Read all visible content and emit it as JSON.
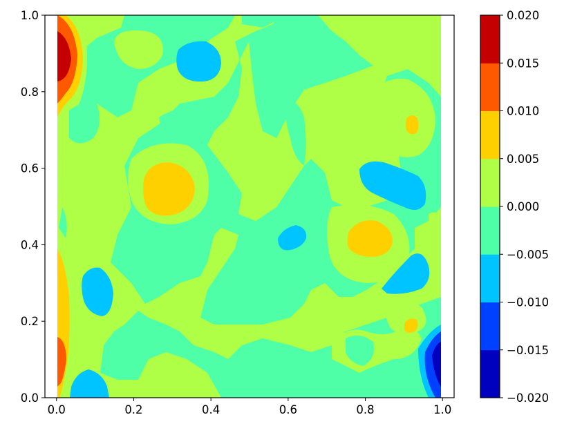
{
  "chart_data": {
    "type": "heatmap",
    "subtype": "filled-contour",
    "colormap": "jet",
    "xlim": [
      -0.03,
      1.03
    ],
    "ylim": [
      0,
      1
    ],
    "x_ticks": [
      0.0,
      0.2,
      0.4,
      0.6,
      0.8,
      1.0
    ],
    "x_tick_labels": [
      "0.0",
      "0.2",
      "0.4",
      "0.6",
      "0.8",
      "1.0"
    ],
    "y_ticks": [
      0.0,
      0.2,
      0.4,
      0.6,
      0.8,
      1.0
    ],
    "y_tick_labels": [
      "0.0",
      "0.2",
      "0.4",
      "0.6",
      "0.8",
      "1.0"
    ],
    "colorbar": {
      "levels": [
        -0.02,
        -0.015,
        -0.01,
        -0.005,
        0.0,
        0.005,
        0.01,
        0.015,
        0.02
      ],
      "tick_labels": [
        "−0.020",
        "−0.015",
        "−0.010",
        "−0.005",
        "0.000",
        "0.005",
        "0.010",
        "0.015",
        "0.020"
      ],
      "band_colors": [
        "#0000bf",
        "#0040ff",
        "#00c4ff",
        "#4fffa8",
        "#b0ff47",
        "#ffd000",
        "#ff5900",
        "#c40000"
      ]
    },
    "grid": false,
    "legend": "colorbar-right",
    "background_level": "-0.005 to 0.000",
    "features": [
      {
        "level": "0.015 to 0.020",
        "x": 0.015,
        "y": 0.88
      },
      {
        "level": "0.010 to 0.015",
        "x": 0.015,
        "y": 0.87
      },
      {
        "level": "0.005 to 0.010",
        "x": 0.025,
        "y": 0.86
      },
      {
        "level": "0.005 to 0.010",
        "x": 0.29,
        "y": 0.54
      },
      {
        "level": "0.005 to 0.010",
        "x": 0.82,
        "y": 0.42
      },
      {
        "level": "0.005 to 0.010",
        "x": 0.925,
        "y": 0.71
      },
      {
        "level": "0.005 to 0.010",
        "x": 0.925,
        "y": 0.19
      },
      {
        "level": "0.005 to 0.010",
        "x": 0.02,
        "y": 0.25
      },
      {
        "level": "0.010 to 0.015",
        "x": 0.01,
        "y": 0.13
      },
      {
        "level": "-0.010 to -0.005",
        "x": 0.365,
        "y": 0.875
      },
      {
        "level": "-0.010 to -0.005",
        "x": 0.75,
        "y": 0.57
      },
      {
        "level": "-0.010 to -0.005",
        "x": 0.615,
        "y": 0.41
      },
      {
        "level": "-0.010 to -0.005",
        "x": 0.895,
        "y": 0.32
      },
      {
        "level": "-0.010 to -0.005",
        "x": 0.105,
        "y": 0.28
      },
      {
        "level": "-0.010 to -0.005",
        "x": 0.085,
        "y": 0.02
      },
      {
        "level": "-0.015 to -0.010",
        "x": 0.98,
        "y": 0.1
      },
      {
        "level": "-0.020 to -0.015",
        "x": 0.99,
        "y": 0.1
      }
    ]
  }
}
